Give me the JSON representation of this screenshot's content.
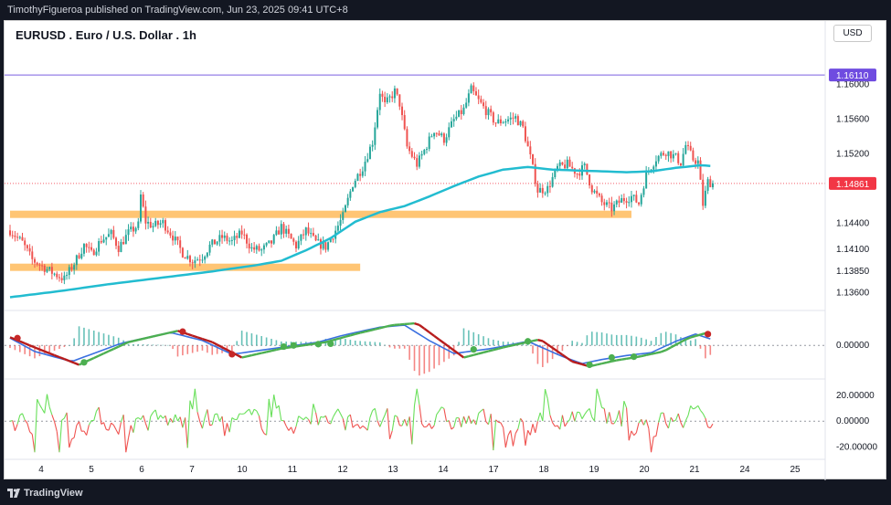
{
  "header": {
    "publisher_text": "TimothyFigueroa published on TradingView.com, Jun 23, 2025 09:41 UTC+8"
  },
  "footer": {
    "brand": "TradingView"
  },
  "symbol_title": "EURUSD . Euro / U.S. Dollar . 1h",
  "currency_button": "USD",
  "colors": {
    "up": "#26a69a",
    "down": "#ef5350",
    "ma": "#22bcd0",
    "resistance_line": "#7b5fe0",
    "support_zone": "#ffc574",
    "price_label": "#f23645",
    "level_label": "#6f4ce0",
    "osc_fast": "#3a6fe0",
    "osc_slow_up": "#4caf50",
    "osc_slow_down": "#b71c1c",
    "mom_up": "#69e05a",
    "mom_down": "#ef5350"
  },
  "chart_data": [
    {
      "type": "candlestick",
      "title": "EURUSD . Euro / U.S. Dollar . 1h",
      "x_ticks": [
        "4",
        "5",
        "6",
        "7",
        "10",
        "11",
        "12",
        "13",
        "14",
        "17",
        "18",
        "19",
        "20",
        "21",
        "24",
        "25"
      ],
      "ylim": [
        1.1345,
        1.165
      ],
      "y_ticks": [
        "1.16000",
        "1.15600",
        "1.15200",
        "1.14400",
        "1.14100",
        "1.13850",
        "1.13600"
      ],
      "price_anchors": [
        [
          0,
          1.1432
        ],
        [
          5,
          1.1418
        ],
        [
          9,
          1.1398
        ],
        [
          14,
          1.1389
        ],
        [
          18,
          1.1382
        ],
        [
          22,
          1.1376
        ],
        [
          26,
          1.1394
        ],
        [
          30,
          1.1415
        ],
        [
          33,
          1.1405
        ],
        [
          37,
          1.1421
        ],
        [
          41,
          1.1428
        ],
        [
          44,
          1.1412
        ],
        [
          48,
          1.1429
        ],
        [
          52,
          1.1438
        ],
        [
          53,
          1.1472
        ],
        [
          55,
          1.1442
        ],
        [
          58,
          1.1437
        ],
        [
          62,
          1.1441
        ],
        [
          66,
          1.1425
        ],
        [
          70,
          1.1406
        ],
        [
          74,
          1.1397
        ],
        [
          78,
          1.1402
        ],
        [
          81,
          1.1414
        ],
        [
          86,
          1.1424
        ],
        [
          90,
          1.1419
        ],
        [
          94,
          1.1429
        ],
        [
          98,
          1.1411
        ],
        [
          102,
          1.1409
        ],
        [
          106,
          1.1418
        ],
        [
          110,
          1.1436
        ],
        [
          113,
          1.1425
        ],
        [
          116,
          1.1414
        ],
        [
          120,
          1.1432
        ],
        [
          124,
          1.1418
        ],
        [
          128,
          1.1413
        ],
        [
          132,
          1.1432
        ],
        [
          135,
          1.1448
        ],
        [
          139,
          1.1486
        ],
        [
          143,
          1.1505
        ],
        [
          147,
          1.1534
        ],
        [
          150,
          1.1592
        ],
        [
          152,
          1.1576
        ],
        [
          156,
          1.1592
        ],
        [
          158,
          1.1578
        ],
        [
          161,
          1.1528
        ],
        [
          165,
          1.1508
        ],
        [
          168,
          1.1524
        ],
        [
          172,
          1.1548
        ],
        [
          176,
          1.1537
        ],
        [
          180,
          1.1559
        ],
        [
          184,
          1.1571
        ],
        [
          187,
          1.1594
        ],
        [
          190,
          1.1581
        ],
        [
          193,
          1.157
        ],
        [
          197,
          1.1556
        ],
        [
          201,
          1.1559
        ],
        [
          205,
          1.1562
        ],
        [
          208,
          1.155
        ],
        [
          211,
          1.1516
        ],
        [
          214,
          1.1478
        ],
        [
          218,
          1.148
        ],
        [
          222,
          1.1504
        ],
        [
          226,
          1.1508
        ],
        [
          230,
          1.1498
        ],
        [
          233,
          1.1505
        ],
        [
          236,
          1.148
        ],
        [
          240,
          1.1464
        ],
        [
          244,
          1.1457
        ],
        [
          248,
          1.1467
        ],
        [
          252,
          1.1471
        ],
        [
          255,
          1.1463
        ],
        [
          258,
          1.1497
        ],
        [
          262,
          1.1515
        ],
        [
          266,
          1.1523
        ],
        [
          270,
          1.1516
        ],
        [
          272,
          1.151
        ],
        [
          274,
          1.153
        ],
        [
          277,
          1.1514
        ],
        [
          279,
          1.1511
        ],
        [
          281,
          1.1462
        ],
        [
          283,
          1.1488
        ],
        [
          285,
          1.1486
        ]
      ],
      "ma_anchors": [
        [
          0,
          1.1355
        ],
        [
          20,
          1.1362
        ],
        [
          40,
          1.137
        ],
        [
          60,
          1.1377
        ],
        [
          80,
          1.1384
        ],
        [
          100,
          1.1392
        ],
        [
          110,
          1.1397
        ],
        [
          120,
          1.1409
        ],
        [
          130,
          1.1423
        ],
        [
          140,
          1.1442
        ],
        [
          150,
          1.1453
        ],
        [
          160,
          1.146
        ],
        [
          170,
          1.1471
        ],
        [
          180,
          1.1483
        ],
        [
          190,
          1.1494
        ],
        [
          200,
          1.1502
        ],
        [
          210,
          1.1505
        ],
        [
          220,
          1.1502
        ],
        [
          230,
          1.1501
        ],
        [
          240,
          1.15
        ],
        [
          250,
          1.1499
        ],
        [
          260,
          1.15
        ],
        [
          270,
          1.1504
        ],
        [
          280,
          1.1507
        ],
        [
          285,
          1.1506
        ]
      ],
      "resistance_level": {
        "value": 1.1611,
        "label": "1.16110"
      },
      "current_price": {
        "value": 1.14861,
        "label": "1.14861"
      },
      "support_zones": [
        {
          "from_bar": 0,
          "to_bar": 252,
          "level": 1.14505
        },
        {
          "from_bar": 0,
          "to_bar": 142,
          "level": 1.13895
        }
      ]
    },
    {
      "type": "oscillator",
      "ylim": [
        -0.0065,
        0.0075
      ],
      "y_ticks": [
        "0.00000"
      ],
      "fast_anchors": [
        [
          0,
          0.0018
        ],
        [
          10,
          -0.0015
        ],
        [
          25,
          -0.004
        ],
        [
          45,
          0.0005
        ],
        [
          65,
          0.0032
        ],
        [
          78,
          0.0012
        ],
        [
          90,
          -0.0022
        ],
        [
          110,
          -0.0005
        ],
        [
          125,
          0.0008
        ],
        [
          135,
          0.0025
        ],
        [
          150,
          0.0045
        ],
        [
          160,
          0.005
        ],
        [
          170,
          0.0012
        ],
        [
          180,
          -0.002
        ],
        [
          195,
          -0.0008
        ],
        [
          210,
          0.001
        ],
        [
          225,
          -0.003
        ],
        [
          232,
          -0.0045
        ],
        [
          240,
          -0.0035
        ],
        [
          250,
          -0.0025
        ],
        [
          260,
          -0.0018
        ],
        [
          270,
          0.001
        ],
        [
          278,
          0.0028
        ],
        [
          285,
          0.0014
        ]
      ],
      "slow_anchors": [
        [
          0,
          0.002
        ],
        [
          12,
          -0.001
        ],
        [
          28,
          -0.0048
        ],
        [
          48,
          0.0008
        ],
        [
          68,
          0.0036
        ],
        [
          82,
          0.0008
        ],
        [
          94,
          -0.003
        ],
        [
          110,
          -0.0008
        ],
        [
          128,
          0.0008
        ],
        [
          140,
          0.0028
        ],
        [
          155,
          0.005
        ],
        [
          165,
          0.0055
        ],
        [
          175,
          0.001
        ],
        [
          184,
          -0.003
        ],
        [
          200,
          -0.0005
        ],
        [
          215,
          0.0015
        ],
        [
          228,
          -0.004
        ],
        [
          235,
          -0.0052
        ],
        [
          245,
          -0.0038
        ],
        [
          255,
          -0.0028
        ],
        [
          265,
          -0.0015
        ],
        [
          275,
          0.0018
        ],
        [
          282,
          0.003
        ],
        [
          285,
          0.002
        ]
      ],
      "markers": [
        [
          3,
          0.0018
        ],
        [
          30,
          -0.0042
        ],
        [
          70,
          0.0034
        ],
        [
          90,
          -0.0022
        ],
        [
          111,
          -0.0003
        ],
        [
          115,
          0.0
        ],
        [
          125,
          0.0003
        ],
        [
          130,
          0.0004
        ],
        [
          188,
          -0.001
        ],
        [
          210,
          0.001
        ],
        [
          235,
          -0.0048
        ],
        [
          244,
          -0.003
        ],
        [
          253,
          -0.0028
        ],
        [
          283,
          0.0028
        ]
      ]
    },
    {
      "type": "line",
      "ylim": [
        -26,
        27
      ],
      "y_ticks": [
        "20.00000",
        "0.00000",
        "-20.00000"
      ]
    }
  ]
}
